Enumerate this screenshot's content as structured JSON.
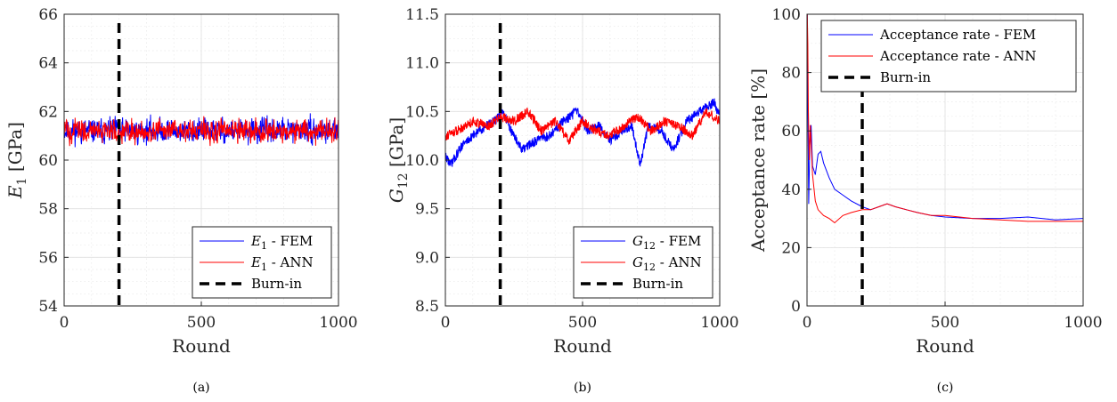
{
  "colors": {
    "fem": "#0000ff",
    "ann": "#ff0000",
    "burnin": "#000000"
  },
  "chart_data": [
    {
      "type": "line",
      "caption": "(a)",
      "xlabel": "Round",
      "ylabel_main": "E",
      "ylabel_sub": "1",
      "ylabel_unit": " [GPa]",
      "xlim": [
        0,
        1000
      ],
      "ylim": [
        54,
        66
      ],
      "xticks": [
        "0",
        "500",
        "1000"
      ],
      "yticks": [
        "54",
        "56",
        "58",
        "60",
        "62",
        "64",
        "66"
      ],
      "burnin_x": 200,
      "legend_position": "bottom-right",
      "legend": [
        {
          "main": "E",
          "sub": "1",
          "rest": " - FEM"
        },
        {
          "main": "E",
          "sub": "1",
          "rest": " - ANN"
        },
        {
          "main": "",
          "sub": "",
          "rest": "Burn-in"
        }
      ],
      "series": [
        {
          "name": "E1 - FEM",
          "kind": "noise",
          "mean": 61.2,
          "amp": 0.35,
          "drift": 0.0,
          "x": [
            0,
            1000
          ]
        },
        {
          "name": "E1 - ANN",
          "kind": "noise",
          "mean": 61.2,
          "amp": 0.32,
          "drift": 0.0,
          "x": [
            0,
            1000
          ]
        }
      ]
    },
    {
      "type": "line",
      "caption": "(b)",
      "xlabel": "Round",
      "ylabel_main": "G",
      "ylabel_sub": "12",
      "ylabel_unit": " [GPa]",
      "xlim": [
        0,
        1000
      ],
      "ylim": [
        8.5,
        11.5
      ],
      "xticks": [
        "0",
        "500",
        "1000"
      ],
      "yticks": [
        "8.5",
        "9.0",
        "9.5",
        "10.0",
        "10.5",
        "11.0",
        "11.5"
      ],
      "burnin_x": 200,
      "legend_position": "bottom-right",
      "legend": [
        {
          "main": "G",
          "sub": "12",
          "rest": " - FEM"
        },
        {
          "main": "G",
          "sub": "12",
          "rest": " - ANN"
        },
        {
          "main": "",
          "sub": "",
          "rest": "Burn-in"
        }
      ],
      "series": [
        {
          "name": "G12 - FEM",
          "kind": "walk",
          "x": [
            0,
            20,
            60,
            120,
            180,
            210,
            240,
            280,
            330,
            380,
            430,
            480,
            520,
            560,
            600,
            640,
            680,
            710,
            740,
            790,
            830,
            880,
            930,
            980,
            1000
          ],
          "y": [
            10.05,
            9.95,
            10.15,
            10.3,
            10.4,
            10.5,
            10.3,
            10.1,
            10.2,
            10.25,
            10.4,
            10.5,
            10.3,
            10.35,
            10.2,
            10.3,
            10.35,
            9.95,
            10.35,
            10.3,
            10.1,
            10.4,
            10.5,
            10.6,
            10.45
          ]
        },
        {
          "name": "G12 - ANN",
          "kind": "walk",
          "x": [
            0,
            40,
            100,
            160,
            200,
            250,
            300,
            350,
            400,
            450,
            500,
            550,
            600,
            650,
            700,
            750,
            800,
            850,
            900,
            950,
            1000
          ],
          "y": [
            10.25,
            10.3,
            10.4,
            10.35,
            10.45,
            10.4,
            10.5,
            10.3,
            10.4,
            10.2,
            10.4,
            10.3,
            10.25,
            10.35,
            10.45,
            10.3,
            10.4,
            10.35,
            10.25,
            10.5,
            10.4
          ]
        }
      ]
    },
    {
      "type": "line",
      "caption": "(c)",
      "xlabel": "Round",
      "ylabel_main": "Acceptance rate [%]",
      "ylabel_sub": "",
      "ylabel_unit": "",
      "xlim": [
        0,
        1000
      ],
      "ylim": [
        0,
        100
      ],
      "xticks": [
        "0",
        "500",
        "1000"
      ],
      "yticks": [
        "0",
        "20",
        "40",
        "60",
        "80",
        "100"
      ],
      "burnin_x": 200,
      "legend_position": "top-right",
      "legend": [
        {
          "main": "",
          "sub": "",
          "rest": "Acceptance rate - FEM"
        },
        {
          "main": "",
          "sub": "",
          "rest": "Acceptance rate - ANN"
        },
        {
          "main": "",
          "sub": "",
          "rest": "Burn-in"
        }
      ],
      "series": [
        {
          "name": "Acceptance rate - FEM",
          "kind": "curve",
          "x": [
            1,
            3,
            6,
            10,
            15,
            20,
            30,
            40,
            50,
            60,
            80,
            100,
            130,
            160,
            200,
            230,
            260,
            290,
            320,
            360,
            400,
            450,
            500,
            600,
            700,
            800,
            900,
            1000
          ],
          "y": [
            100,
            70,
            35,
            55,
            62,
            48,
            45,
            52,
            53,
            49,
            44,
            40,
            38,
            36,
            34,
            33,
            34,
            35,
            34,
            33,
            32,
            31,
            30.5,
            30,
            30,
            30.5,
            29.5,
            30
          ]
        },
        {
          "name": "Acceptance rate - ANN",
          "kind": "curve",
          "x": [
            1,
            3,
            5,
            8,
            12,
            20,
            30,
            40,
            60,
            80,
            100,
            130,
            160,
            200,
            230,
            260,
            290,
            320,
            360,
            400,
            450,
            500,
            600,
            700,
            800,
            900,
            1000
          ],
          "y": [
            100,
            90,
            67,
            50,
            62,
            45,
            36,
            33,
            31,
            30,
            28.5,
            31,
            32,
            33,
            33,
            34,
            35,
            34,
            33,
            32,
            31,
            31,
            30,
            29.5,
            29,
            29,
            29
          ]
        }
      ]
    }
  ]
}
